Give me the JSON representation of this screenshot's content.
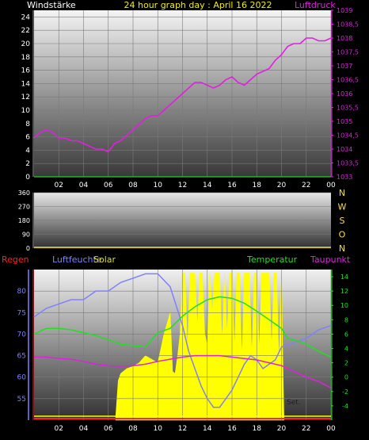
{
  "chart_data": [
    {
      "type": "line",
      "title": "24 hour graph day : April 16 2022",
      "left_label": "Windstärke",
      "right_label": "Luftdruck",
      "x_ticks": [
        "02",
        "04",
        "06",
        "08",
        "10",
        "12",
        "14",
        "16",
        "18",
        "20",
        "22",
        "00"
      ],
      "x_range": [
        0,
        24
      ],
      "y_left_ticks": [
        0,
        2,
        4,
        6,
        8,
        10,
        12,
        14,
        16,
        18,
        20,
        22,
        24
      ],
      "y_left_range": [
        0,
        25
      ],
      "y_right_ticks": [
        "1033",
        "1033,5",
        "1034",
        "1034,5",
        "1035",
        "1035,5",
        "1036",
        "1036,5",
        "1037",
        "1037,5",
        "1038",
        "1038,5",
        "1039"
      ],
      "y_right_range": [
        1033,
        1039
      ],
      "grid": true,
      "series": [
        {
          "name": "Luftdruck",
          "color": "#e020e0",
          "axis": "right",
          "x": [
            0,
            0.5,
            1,
            1.5,
            2,
            2.5,
            3,
            3.5,
            4,
            4.5,
            5,
            5.5,
            6,
            6.5,
            7,
            7.5,
            8,
            8.5,
            9,
            9.5,
            10,
            10.5,
            11,
            11.5,
            12,
            12.5,
            13,
            13.5,
            14,
            14.5,
            15,
            15.5,
            16,
            16.5,
            17,
            17.5,
            18,
            18.5,
            19,
            19.5,
            20,
            20.5,
            21,
            21.5,
            22,
            22.5,
            23,
            23.5,
            24
          ],
          "y": [
            1034.4,
            1034.6,
            1034.7,
            1034.6,
            1034.4,
            1034.4,
            1034.3,
            1034.3,
            1034.2,
            1034.1,
            1034.0,
            1034.0,
            1033.9,
            1034.2,
            1034.3,
            1034.5,
            1034.7,
            1034.9,
            1035.1,
            1035.2,
            1035.2,
            1035.4,
            1035.6,
            1035.8,
            1036.0,
            1036.2,
            1036.4,
            1036.4,
            1036.3,
            1036.2,
            1036.3,
            1036.5,
            1036.6,
            1036.4,
            1036.3,
            1036.5,
            1036.7,
            1036.8,
            1036.9,
            1037.2,
            1037.4,
            1037.7,
            1037.8,
            1037.8,
            1038.0,
            1038.0,
            1037.9,
            1037.9,
            1038.0
          ]
        },
        {
          "name": "Windstärke",
          "color": "#20d020",
          "axis": "left",
          "x": [
            0,
            24
          ],
          "y": [
            0,
            0
          ]
        }
      ]
    },
    {
      "type": "line",
      "title": "",
      "x_range": [
        0,
        24
      ],
      "y_left_ticks": [
        0,
        90,
        180,
        270,
        360
      ],
      "y_left_range": [
        0,
        360
      ],
      "y_right_labels": [
        "N",
        "W",
        "S",
        "O",
        "N"
      ],
      "grid": true,
      "series": [
        {
          "name": "Windrichtung",
          "color": "#f0e040",
          "x": [
            0,
            24
          ],
          "y": [
            0,
            0
          ]
        }
      ]
    },
    {
      "type": "line",
      "title": "",
      "labels": {
        "regen": "Regen",
        "luftfeuchte": "Luftfeuchte",
        "solar": "Solar",
        "temperatur": "Temperatur",
        "taupunkt": "Taupunkt",
        "set": "Set."
      },
      "x_ticks": [
        "02",
        "04",
        "06",
        "08",
        "10",
        "12",
        "14",
        "16",
        "18",
        "20",
        "22",
        "00"
      ],
      "x_range": [
        0,
        24
      ],
      "y_left_ticks": [
        55,
        60,
        65,
        70,
        75,
        80
      ],
      "y_left_range": [
        50,
        85
      ],
      "y_right_ticks": [
        -4,
        -2,
        0,
        2,
        4,
        6,
        8,
        10,
        12,
        14
      ],
      "y_right_range": [
        -6,
        15
      ],
      "grid": true,
      "series": [
        {
          "name": "Luftfeuchte",
          "color": "#8080ff",
          "axis": "left",
          "x": [
            0,
            1,
            2,
            3,
            4,
            5,
            6,
            7,
            8,
            9,
            10,
            11,
            12,
            12.5,
            13,
            13.5,
            14,
            14.5,
            15,
            15.5,
            16,
            16.5,
            17,
            17.5,
            18,
            18.5,
            19,
            19.5,
            20,
            21,
            22,
            23,
            24
          ],
          "y": [
            74,
            76,
            77,
            78,
            78,
            80,
            80,
            82,
            83,
            84,
            84,
            81,
            72,
            66,
            62,
            58,
            55,
            53,
            53,
            55,
            57,
            60,
            63,
            65,
            64,
            62,
            63,
            64,
            67,
            68,
            69,
            71,
            72
          ]
        },
        {
          "name": "Temperatur",
          "color": "#20e020",
          "axis": "right",
          "x": [
            0,
            1,
            2,
            3,
            4,
            5,
            6,
            7,
            8,
            9,
            10,
            11,
            12,
            13,
            14,
            15,
            16,
            17,
            18,
            19,
            20,
            20.5,
            21,
            22,
            23,
            24
          ],
          "y": [
            6.0,
            6.8,
            6.8,
            6.6,
            6.2,
            5.8,
            5.2,
            4.6,
            4.4,
            4.2,
            6.2,
            6.8,
            8.5,
            9.8,
            10.8,
            11.2,
            11.0,
            10.3,
            9.2,
            8.0,
            6.8,
            5.4,
            5.2,
            4.6,
            3.6,
            2.8
          ]
        },
        {
          "name": "Taupunkt",
          "color": "#e020e0",
          "axis": "right",
          "x": [
            0,
            1,
            2,
            3,
            4,
            5,
            6,
            7,
            8,
            9,
            10,
            11,
            12,
            13,
            14,
            15,
            16,
            17,
            18,
            19,
            20,
            21,
            22,
            23,
            24
          ],
          "y": [
            2.8,
            2.8,
            2.6,
            2.5,
            2.2,
            1.8,
            1.6,
            1.5,
            1.6,
            1.8,
            2.2,
            2.5,
            2.8,
            3.0,
            3.0,
            3.0,
            2.8,
            2.6,
            2.4,
            2.0,
            1.6,
            0.8,
            0.0,
            -0.6,
            -1.5
          ]
        },
        {
          "name": "Solar",
          "color": "#ffff00",
          "axis": "right",
          "type": "area",
          "x": [
            6.6,
            6.8,
            7,
            7.5,
            8,
            8.5,
            9,
            9.5,
            10,
            10.5,
            11,
            11.2,
            11.4,
            11.6,
            11.8,
            12,
            12.2,
            12.4,
            12.6,
            12.8,
            13,
            13.2,
            13.4,
            13.6,
            13.8,
            14,
            14.2,
            14.4,
            14.6,
            14.8,
            15,
            15.2,
            15.4,
            15.6,
            15.8,
            16,
            16.2,
            16.4,
            16.6,
            16.8,
            17,
            17.2,
            17.4,
            17.6,
            17.8,
            18,
            18.2,
            18.4,
            18.6,
            18.8,
            19,
            19.2,
            19.4,
            19.6,
            19.8,
            20,
            20.1,
            20.2
          ],
          "y": [
            -5.5,
            -0.5,
            0.5,
            1.2,
            1.5,
            2.0,
            3.0,
            2.5,
            2.0,
            6.0,
            9.0,
            0.8,
            0.5,
            3.0,
            6.0,
            14.5,
            14.5,
            4.0,
            14.5,
            14.5,
            14.5,
            7.0,
            14.5,
            14.5,
            6.0,
            4.5,
            14.5,
            9.0,
            14.5,
            14.5,
            14.5,
            5.0,
            14.5,
            6.0,
            14.5,
            14.5,
            4.0,
            14.5,
            14.5,
            2.5,
            14.5,
            14.5,
            14.5,
            3.0,
            14.5,
            14.5,
            3.5,
            14.5,
            14.5,
            14.5,
            14.5,
            4.0,
            14.5,
            14.5,
            2.0,
            14.5,
            3.0,
            -5.5
          ]
        },
        {
          "name": "Regen",
          "color": "#ff2020",
          "axis": "left",
          "x": [
            0,
            24
          ],
          "y": [
            50,
            50
          ]
        }
      ]
    }
  ]
}
